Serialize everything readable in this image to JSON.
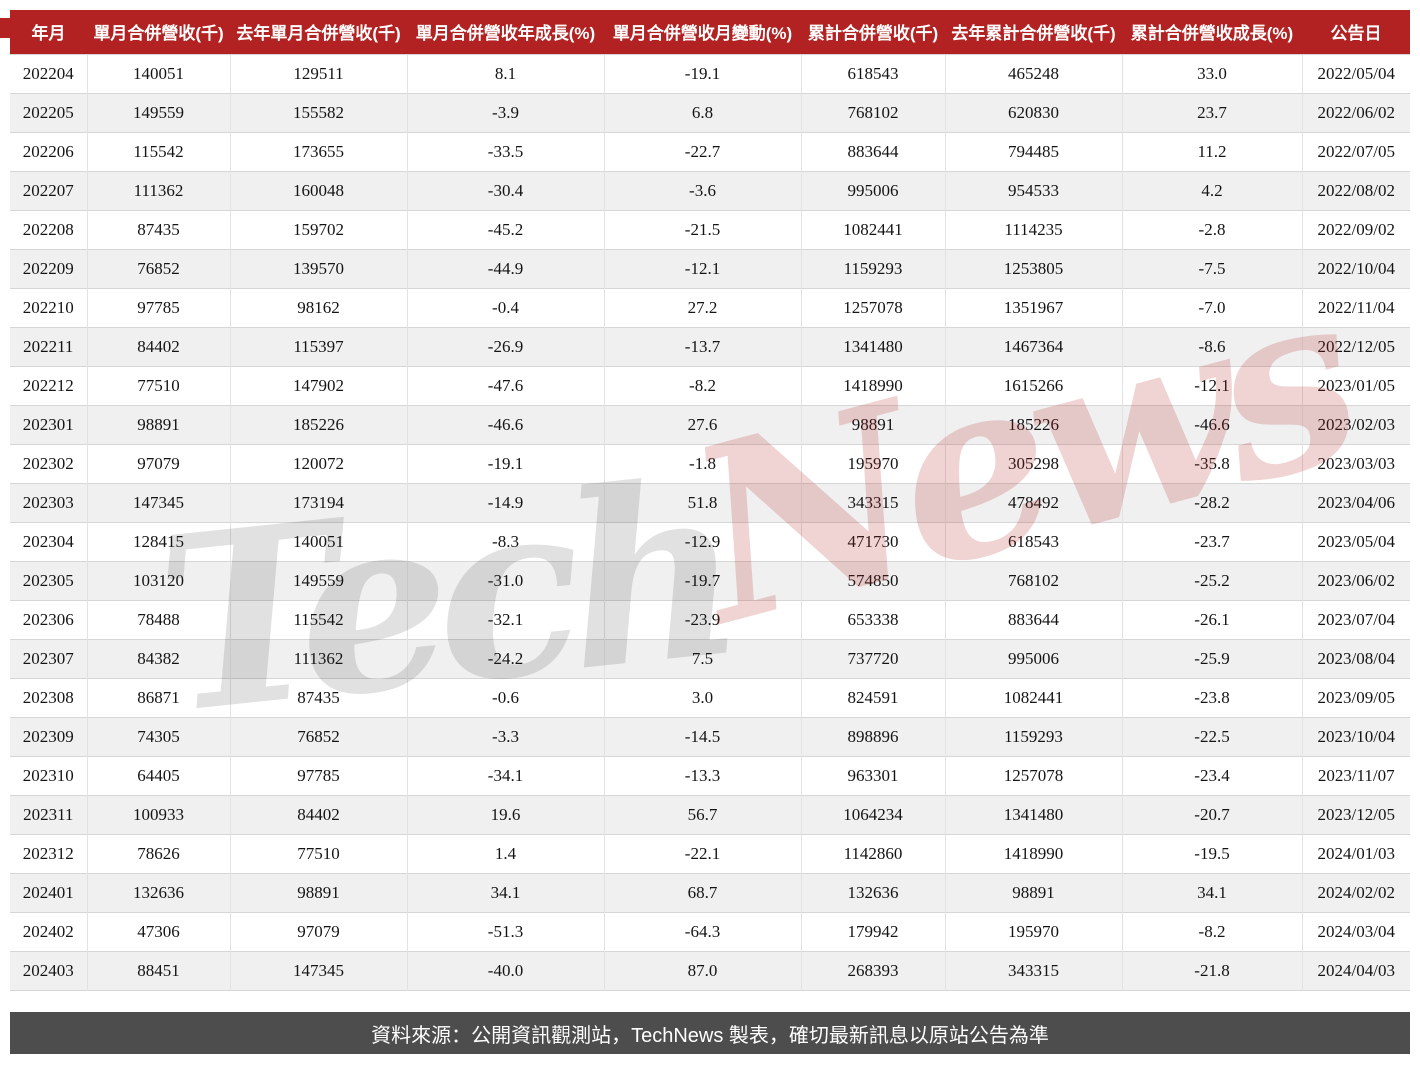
{
  "chart_data": {
    "type": "table",
    "columns": [
      "年月",
      "單月合併營收(千)",
      "去年單月合併營收(千)",
      "單月合併營收年成長(%)",
      "單月合併營收月變動(%)",
      "累計合併營收(千)",
      "去年累計合併營收(千)",
      "累計合併營收成長(%)",
      "公告日"
    ],
    "rows": [
      [
        "202204",
        "140051",
        "129511",
        "8.1",
        "-19.1",
        "618543",
        "465248",
        "33.0",
        "2022/05/04"
      ],
      [
        "202205",
        "149559",
        "155582",
        "-3.9",
        "6.8",
        "768102",
        "620830",
        "23.7",
        "2022/06/02"
      ],
      [
        "202206",
        "115542",
        "173655",
        "-33.5",
        "-22.7",
        "883644",
        "794485",
        "11.2",
        "2022/07/05"
      ],
      [
        "202207",
        "111362",
        "160048",
        "-30.4",
        "-3.6",
        "995006",
        "954533",
        "4.2",
        "2022/08/02"
      ],
      [
        "202208",
        "87435",
        "159702",
        "-45.2",
        "-21.5",
        "1082441",
        "1114235",
        "-2.8",
        "2022/09/02"
      ],
      [
        "202209",
        "76852",
        "139570",
        "-44.9",
        "-12.1",
        "1159293",
        "1253805",
        "-7.5",
        "2022/10/04"
      ],
      [
        "202210",
        "97785",
        "98162",
        "-0.4",
        "27.2",
        "1257078",
        "1351967",
        "-7.0",
        "2022/11/04"
      ],
      [
        "202211",
        "84402",
        "115397",
        "-26.9",
        "-13.7",
        "1341480",
        "1467364",
        "-8.6",
        "2022/12/05"
      ],
      [
        "202212",
        "77510",
        "147902",
        "-47.6",
        "-8.2",
        "1418990",
        "1615266",
        "-12.1",
        "2023/01/05"
      ],
      [
        "202301",
        "98891",
        "185226",
        "-46.6",
        "27.6",
        "98891",
        "185226",
        "-46.6",
        "2023/02/03"
      ],
      [
        "202302",
        "97079",
        "120072",
        "-19.1",
        "-1.8",
        "195970",
        "305298",
        "-35.8",
        "2023/03/03"
      ],
      [
        "202303",
        "147345",
        "173194",
        "-14.9",
        "51.8",
        "343315",
        "478492",
        "-28.2",
        "2023/04/06"
      ],
      [
        "202304",
        "128415",
        "140051",
        "-8.3",
        "-12.9",
        "471730",
        "618543",
        "-23.7",
        "2023/05/04"
      ],
      [
        "202305",
        "103120",
        "149559",
        "-31.0",
        "-19.7",
        "574850",
        "768102",
        "-25.2",
        "2023/06/02"
      ],
      [
        "202306",
        "78488",
        "115542",
        "-32.1",
        "-23.9",
        "653338",
        "883644",
        "-26.1",
        "2023/07/04"
      ],
      [
        "202307",
        "84382",
        "111362",
        "-24.2",
        "7.5",
        "737720",
        "995006",
        "-25.9",
        "2023/08/04"
      ],
      [
        "202308",
        "86871",
        "87435",
        "-0.6",
        "3.0",
        "824591",
        "1082441",
        "-23.8",
        "2023/09/05"
      ],
      [
        "202309",
        "74305",
        "76852",
        "-3.3",
        "-14.5",
        "898896",
        "1159293",
        "-22.5",
        "2023/10/04"
      ],
      [
        "202310",
        "64405",
        "97785",
        "-34.1",
        "-13.3",
        "963301",
        "1257078",
        "-23.4",
        "2023/11/07"
      ],
      [
        "202311",
        "100933",
        "84402",
        "19.6",
        "56.7",
        "1064234",
        "1341480",
        "-20.7",
        "2023/12/05"
      ],
      [
        "202312",
        "78626",
        "77510",
        "1.4",
        "-22.1",
        "1142860",
        "1418990",
        "-19.5",
        "2024/01/03"
      ],
      [
        "202401",
        "132636",
        "98891",
        "34.1",
        "68.7",
        "132636",
        "98891",
        "34.1",
        "2024/02/02"
      ],
      [
        "202402",
        "47306",
        "97079",
        "-51.3",
        "-64.3",
        "179942",
        "195970",
        "-8.2",
        "2024/03/04"
      ],
      [
        "202403",
        "88451",
        "147345",
        "-40.0",
        "87.0",
        "268393",
        "343315",
        "-21.8",
        "2024/04/03"
      ]
    ],
    "layout_hints": {
      "grid": "on",
      "header_position": "top",
      "row_striping": "alternate"
    }
  },
  "watermark": {
    "text_gray": "Tech",
    "text_red": "News"
  },
  "footer": {
    "source_note": "資料來源：公開資訊觀測站，TechNews 製表，確切最新訊息以原站公告為準"
  },
  "colors": {
    "header_bg": "#b22222",
    "header_text": "#ffffff",
    "row_bg": "#ffffff",
    "row_alt_bg": "#f0f0f0",
    "grid_line": "#d6d6d6",
    "footer_bg": "#4d4d4d",
    "footer_text": "#ffffff",
    "watermark_gray": "rgba(40,40,40,0.14)",
    "watermark_red": "rgba(178,34,34,0.20)"
  }
}
